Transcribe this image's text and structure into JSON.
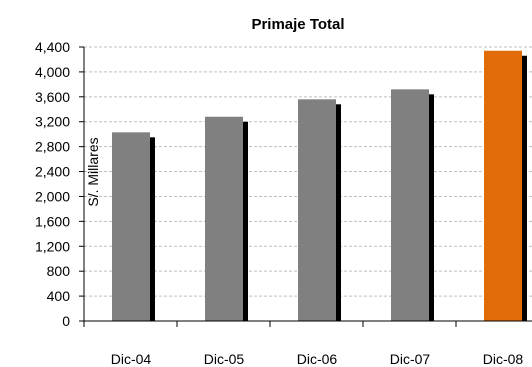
{
  "chart_data": {
    "type": "bar",
    "title": "Primaje Total",
    "ylabel": "S/. Millares",
    "xlabel": "",
    "categories": [
      "Dic-04",
      "Dic-05",
      "Dic-06",
      "Dic-07",
      "Dic-08"
    ],
    "values": [
      3030,
      3280,
      3560,
      3720,
      4340
    ],
    "y_ticks": [
      0,
      400,
      800,
      1200,
      1600,
      2000,
      2400,
      2800,
      3200,
      3600,
      4000,
      4400
    ],
    "y_tick_labels": [
      "0",
      "400",
      "800",
      "1,200",
      "1,600",
      "2,000",
      "2,400",
      "2,800",
      "3,200",
      "3,600",
      "4,000",
      "4,400"
    ],
    "ylim": [
      0,
      4400
    ],
    "grid": true,
    "legend": "none",
    "colors": {
      "default_bar": "#808080",
      "highlight_bar": "#e36c0a",
      "shadow": "#000000",
      "grid": "#bfbfbf",
      "axis": "#000000"
    },
    "highlight_index": 4
  }
}
